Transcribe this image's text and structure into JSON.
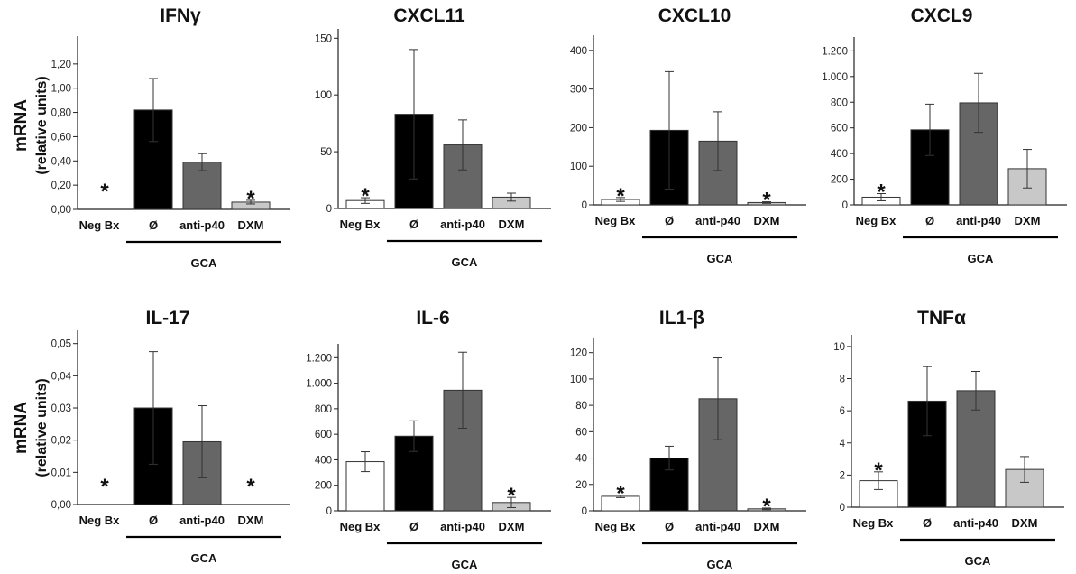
{
  "figure": {
    "ylabel_line1": "mRNA",
    "ylabel_line2": "(relative units)"
  },
  "chart_data": [
    {
      "type": "bar",
      "title": "IFNγ",
      "categories": [
        "Neg Bx",
        "Ø",
        "anti-p40",
        "DXM"
      ],
      "group_label": "GCA",
      "values": [
        0,
        0.82,
        0.39,
        0.06
      ],
      "errors": [
        0,
        0.26,
        0.07,
        0.015
      ],
      "significant": [
        true,
        false,
        false,
        true
      ],
      "colors": [
        "#ffffff",
        "#000000",
        "#666666",
        "#c8c8c8"
      ],
      "ylim": [
        0,
        1.4
      ],
      "yticks": [
        0,
        0.2,
        0.4,
        0.6,
        0.8,
        1.0,
        1.2
      ],
      "ytick_labels": [
        "0,00",
        "0,20",
        "0,40",
        "0,60",
        "0,80",
        "1,00",
        "1,20"
      ]
    },
    {
      "type": "bar",
      "title": "CXCL11",
      "categories": [
        "Neg Bx",
        "Ø",
        "anti-p40",
        "DXM"
      ],
      "group_label": "GCA",
      "values": [
        7,
        83,
        56,
        10
      ],
      "errors": [
        2.5,
        57,
        22,
        3.5
      ],
      "significant": [
        true,
        false,
        false,
        false
      ],
      "colors": [
        "#ffffff",
        "#000000",
        "#666666",
        "#c8c8c8"
      ],
      "ylim": [
        0,
        155
      ],
      "yticks": [
        0,
        50,
        100,
        150
      ],
      "ytick_labels": [
        "0",
        "50",
        "100",
        "150"
      ]
    },
    {
      "type": "bar",
      "title": "CXCL10",
      "categories": [
        "Neg Bx",
        "Ø",
        "anti-p40",
        "DXM"
      ],
      "group_label": "GCA",
      "values": [
        14,
        193,
        165,
        6
      ],
      "errors": [
        5,
        152,
        76,
        2
      ],
      "significant": [
        true,
        false,
        false,
        true
      ],
      "colors": [
        "#ffffff",
        "#000000",
        "#666666",
        "#c8c8c8"
      ],
      "ylim": [
        0,
        430
      ],
      "yticks": [
        0,
        100,
        200,
        300,
        400
      ],
      "ytick_labels": [
        "0",
        "100",
        "200",
        "300",
        "400"
      ]
    },
    {
      "type": "bar",
      "title": "CXCL9",
      "categories": [
        "Neg Bx",
        "Ø",
        "anti-p40",
        "DXM"
      ],
      "group_label": "GCA",
      "values": [
        60,
        585,
        795,
        282
      ],
      "errors": [
        28,
        200,
        230,
        150
      ],
      "significant": [
        true,
        false,
        false,
        false
      ],
      "colors": [
        "#ffffff",
        "#000000",
        "#666666",
        "#c8c8c8"
      ],
      "ylim": [
        0,
        1280
      ],
      "yticks": [
        0,
        200,
        400,
        600,
        800,
        1000,
        1200
      ],
      "ytick_labels": [
        "0",
        "200",
        "400",
        "600",
        "800",
        "1.000",
        "1.200"
      ]
    },
    {
      "type": "bar",
      "title": "IL-17",
      "categories": [
        "Neg Bx",
        "Ø",
        "anti-p40",
        "DXM"
      ],
      "group_label": "GCA",
      "values": [
        0,
        0.03,
        0.0195,
        0
      ],
      "errors": [
        0,
        0.0175,
        0.0112,
        0
      ],
      "significant": [
        true,
        false,
        false,
        true
      ],
      "colors": [
        "#ffffff",
        "#000000",
        "#666666",
        "#c8c8c8"
      ],
      "ylim": [
        0,
        0.053
      ],
      "yticks": [
        0,
        0.01,
        0.02,
        0.03,
        0.04,
        0.05
      ],
      "ytick_labels": [
        "0,00",
        "0,01",
        "0,02",
        "0,03",
        "0,04",
        "0,05"
      ]
    },
    {
      "type": "bar",
      "title": "IL-6",
      "categories": [
        "Neg Bx",
        "Ø",
        "anti-p40",
        "DXM"
      ],
      "group_label": "GCA",
      "values": [
        385,
        585,
        945,
        65
      ],
      "errors": [
        78,
        120,
        298,
        40
      ],
      "significant": [
        false,
        false,
        false,
        true
      ],
      "colors": [
        "#ffffff",
        "#000000",
        "#666666",
        "#c8c8c8"
      ],
      "ylim": [
        0,
        1280
      ],
      "yticks": [
        0,
        200,
        400,
        600,
        800,
        1000,
        1200
      ],
      "ytick_labels": [
        "0",
        "200",
        "400",
        "600",
        "800",
        "1.000",
        "1.200"
      ]
    },
    {
      "type": "bar",
      "title": "IL1-β",
      "categories": [
        "Neg Bx",
        "Ø",
        "anti-p40",
        "DXM"
      ],
      "group_label": "GCA",
      "values": [
        11,
        40,
        85,
        1.5
      ],
      "errors": [
        1,
        9,
        31,
        0.6
      ],
      "significant": [
        true,
        false,
        false,
        true
      ],
      "colors": [
        "#ffffff",
        "#000000",
        "#666666",
        "#c8c8c8"
      ],
      "ylim": [
        0,
        128
      ],
      "yticks": [
        0,
        20,
        40,
        60,
        80,
        100,
        120
      ],
      "ytick_labels": [
        "0",
        "20",
        "40",
        "60",
        "80",
        "100",
        "120"
      ]
    },
    {
      "type": "bar",
      "title": "TNFα",
      "categories": [
        "Neg Bx",
        "Ø",
        "anti-p40",
        "DXM"
      ],
      "group_label": "GCA",
      "values": [
        1.65,
        6.6,
        7.25,
        2.35
      ],
      "errors": [
        0.55,
        2.15,
        1.2,
        0.8
      ],
      "significant": [
        true,
        false,
        false,
        false
      ],
      "colors": [
        "#ffffff",
        "#000000",
        "#666666",
        "#c8c8c8"
      ],
      "ylim": [
        0,
        10.5
      ],
      "yticks": [
        0,
        2,
        4,
        6,
        8,
        10
      ],
      "ytick_labels": [
        "0",
        "2",
        "4",
        "6",
        "8",
        "10"
      ]
    }
  ]
}
